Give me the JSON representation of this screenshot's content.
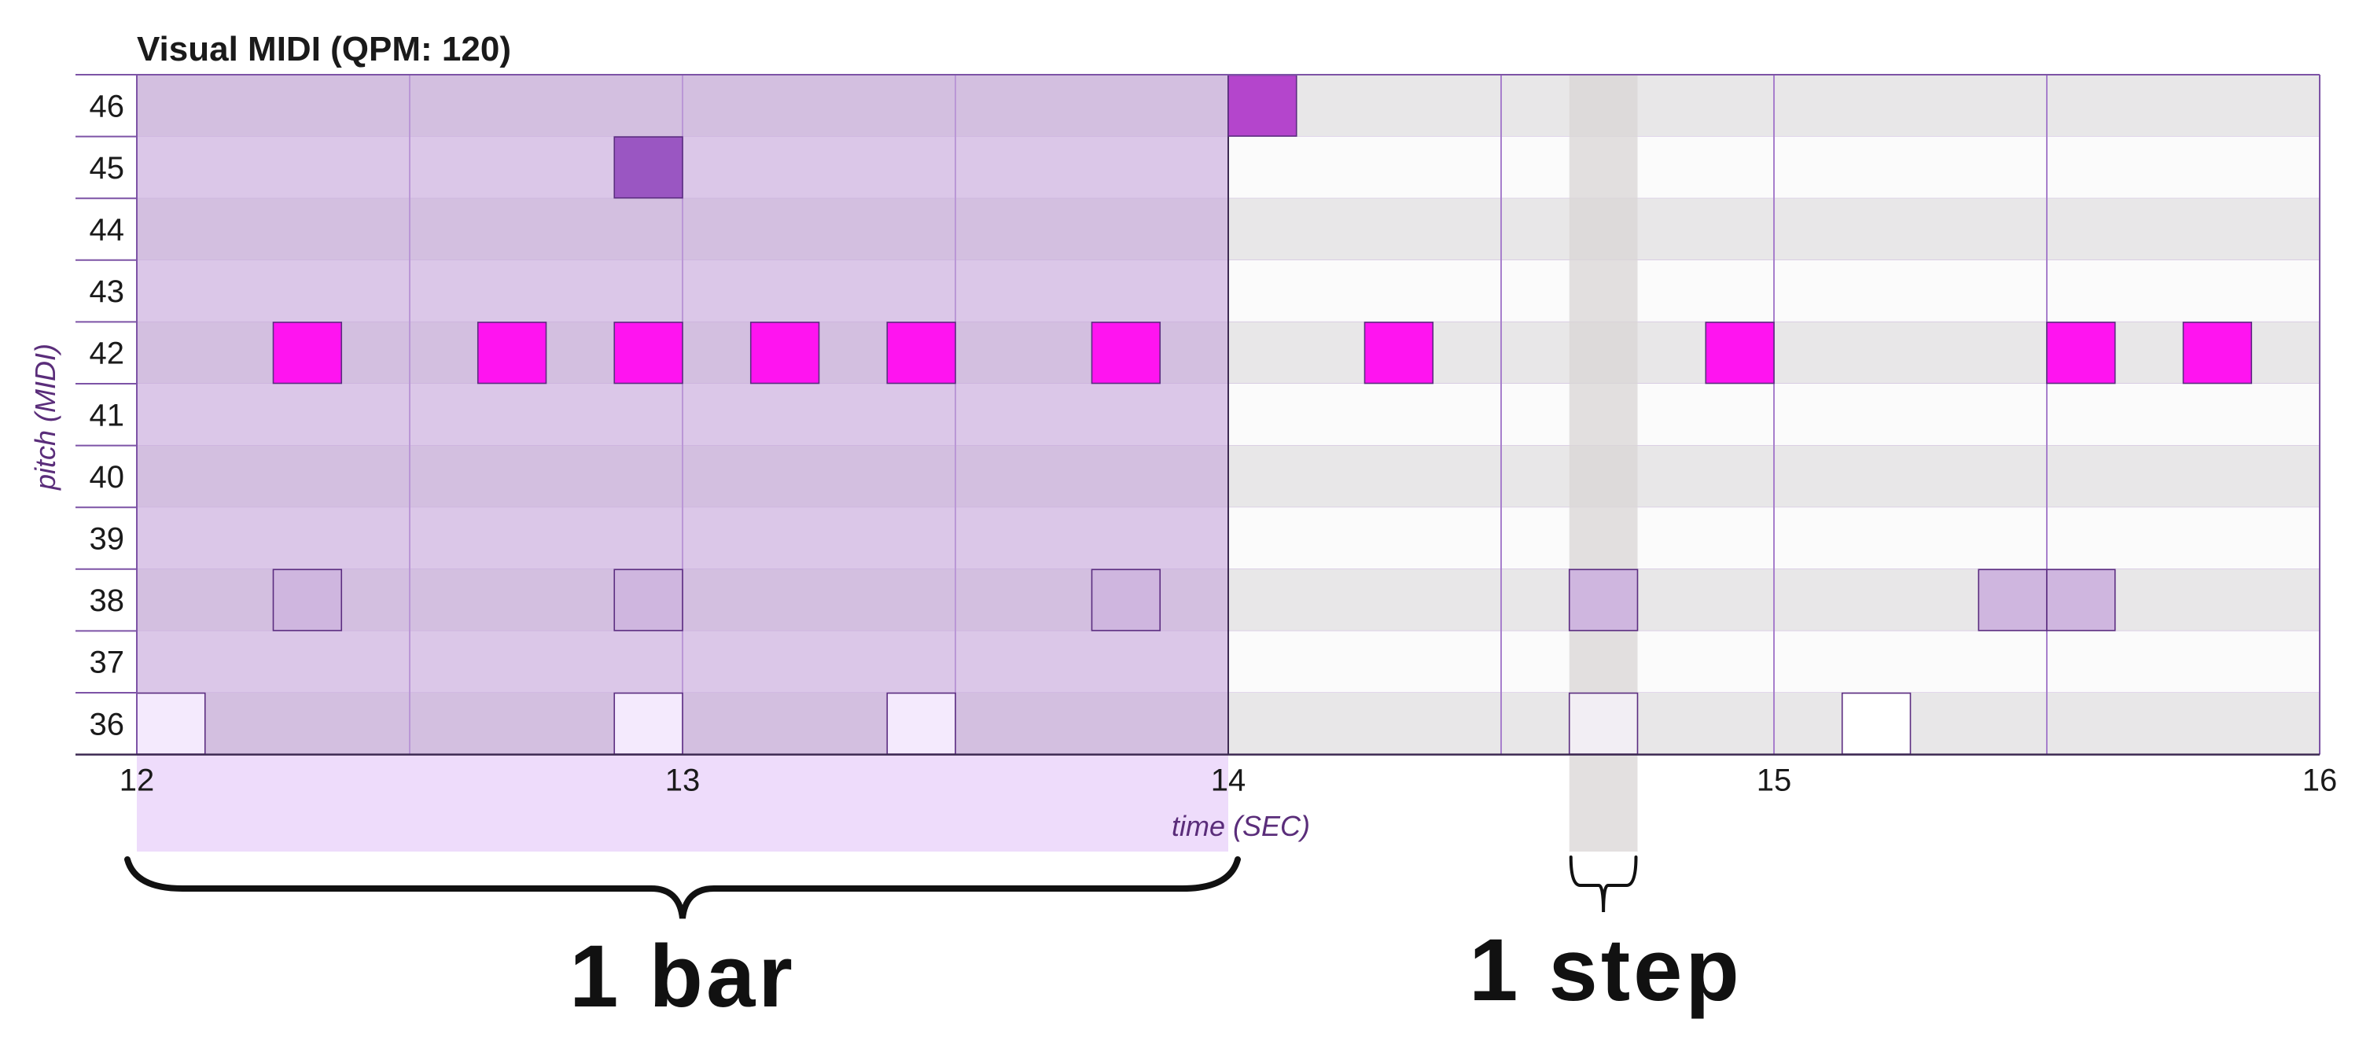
{
  "title": "Visual MIDI (QPM: 120)",
  "ylabel": "pitch (MIDI)",
  "xlabel": "time (SEC)",
  "bar_label": "1 bar",
  "step_label": "1 step",
  "colors": {
    "row_dark": "#e8e7e8",
    "row_light": "#fbfbfb",
    "grid": "#a77fcc",
    "bar_overlay": "#c6a7db",
    "below_axis_fill": "#eedcfb",
    "note_hihat": "#ff14f0",
    "note_snare": "#cfb6df",
    "note_kick": "#f4eafd",
    "note_45": "#9a56c2",
    "note_46": "#b445cc",
    "text": "#1a1a1a",
    "axis_label": "#5a2d7a",
    "step_band": "#d9d6d6"
  },
  "chart_data": {
    "type": "heatmap",
    "title": "Visual MIDI (QPM: 120)",
    "xlabel": "time (SEC)",
    "ylabel": "pitch (MIDI)",
    "xlim": [
      12,
      16
    ],
    "ylim": [
      36,
      46
    ],
    "x_ticks": [
      12,
      13,
      14,
      15,
      16
    ],
    "y_ticks": [
      36,
      37,
      38,
      39,
      40,
      41,
      42,
      43,
      44,
      45,
      46
    ],
    "beat_lines": [
      12.5,
      13,
      13.5,
      14.5,
      15,
      15.5
    ],
    "step_seconds": 0.125,
    "highlighted_bar": [
      12,
      14
    ],
    "highlighted_step": [
      14.625,
      14.75
    ],
    "notes": [
      {
        "pitch": 46,
        "start": 14.0,
        "end": 14.125,
        "kind": "p46"
      },
      {
        "pitch": 45,
        "start": 12.875,
        "end": 13.0,
        "kind": "p45"
      },
      {
        "pitch": 42,
        "start": 12.25,
        "end": 12.375,
        "kind": "hihat"
      },
      {
        "pitch": 42,
        "start": 12.625,
        "end": 12.75,
        "kind": "hihat"
      },
      {
        "pitch": 42,
        "start": 12.875,
        "end": 13.0,
        "kind": "hihat"
      },
      {
        "pitch": 42,
        "start": 13.125,
        "end": 13.25,
        "kind": "hihat"
      },
      {
        "pitch": 42,
        "start": 13.375,
        "end": 13.5,
        "kind": "hihat"
      },
      {
        "pitch": 42,
        "start": 13.75,
        "end": 13.875,
        "kind": "hihat"
      },
      {
        "pitch": 42,
        "start": 14.25,
        "end": 14.375,
        "kind": "hihat"
      },
      {
        "pitch": 42,
        "start": 14.875,
        "end": 15.0,
        "kind": "hihat"
      },
      {
        "pitch": 42,
        "start": 15.5,
        "end": 15.625,
        "kind": "hihat"
      },
      {
        "pitch": 42,
        "start": 15.75,
        "end": 15.875,
        "kind": "hihat"
      },
      {
        "pitch": 38,
        "start": 12.25,
        "end": 12.375,
        "kind": "snare"
      },
      {
        "pitch": 38,
        "start": 12.875,
        "end": 13.0,
        "kind": "snare"
      },
      {
        "pitch": 38,
        "start": 13.75,
        "end": 13.875,
        "kind": "snare"
      },
      {
        "pitch": 38,
        "start": 14.625,
        "end": 14.75,
        "kind": "snare"
      },
      {
        "pitch": 38,
        "start": 15.375,
        "end": 15.5,
        "kind": "snare"
      },
      {
        "pitch": 38,
        "start": 15.5,
        "end": 15.625,
        "kind": "snare"
      },
      {
        "pitch": 36,
        "start": 12.0,
        "end": 12.125,
        "kind": "kick"
      },
      {
        "pitch": 36,
        "start": 12.875,
        "end": 13.0,
        "kind": "kick"
      },
      {
        "pitch": 36,
        "start": 13.375,
        "end": 13.5,
        "kind": "kick"
      },
      {
        "pitch": 36,
        "start": 14.625,
        "end": 14.75,
        "kind": "kick-outline"
      },
      {
        "pitch": 36,
        "start": 15.125,
        "end": 15.25,
        "kind": "kick-outline"
      }
    ]
  }
}
